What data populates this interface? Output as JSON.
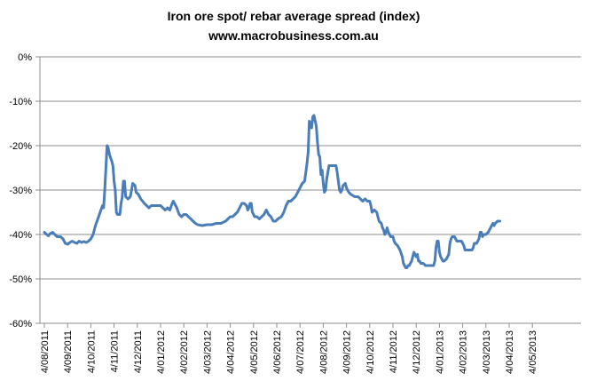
{
  "chart_data": {
    "type": "line",
    "title": "Iron ore spot/ rebar average spread (index)",
    "subtitle": "www.macrobusiness.com.au",
    "xlabel": "",
    "ylabel": "",
    "ylim": [
      -60,
      0
    ],
    "yticks": [
      0,
      -10,
      -20,
      -30,
      -40,
      -50,
      -60
    ],
    "ytick_labels": [
      "0%",
      "-10%",
      "-20%",
      "-30%",
      "-40%",
      "-50%",
      "-60%"
    ],
    "xticks": [
      "4/08/2011",
      "4/09/2011",
      "4/10/2011",
      "4/11/2011",
      "4/12/2011",
      "4/01/2012",
      "4/02/2012",
      "4/03/2012",
      "4/04/2012",
      "4/05/2012",
      "4/06/2012",
      "4/07/2012",
      "4/08/2012",
      "4/09/2012",
      "4/10/2012",
      "4/11/2012",
      "4/12/2012",
      "4/01/2013",
      "4/02/2013",
      "4/03/2013",
      "4/04/2013",
      "4/05/2013"
    ],
    "grid": true,
    "legend": "none",
    "line_color": "#4a7ebb",
    "series": [
      {
        "name": "Iron ore spot/ rebar average spread",
        "points": [
          [
            0,
            -39.5
          ],
          [
            0.1,
            -40.0
          ],
          [
            0.18,
            -40.3
          ],
          [
            0.25,
            -39.8
          ],
          [
            0.35,
            -39.5
          ],
          [
            0.45,
            -40.0
          ],
          [
            0.55,
            -40.5
          ],
          [
            0.7,
            -40.5
          ],
          [
            0.8,
            -41.0
          ],
          [
            0.9,
            -42.0
          ],
          [
            1.0,
            -42.2
          ],
          [
            1.1,
            -41.8
          ],
          [
            1.2,
            -41.5
          ],
          [
            1.3,
            -41.8
          ],
          [
            1.4,
            -42.0
          ],
          [
            1.5,
            -41.5
          ],
          [
            1.6,
            -41.8
          ],
          [
            1.7,
            -41.6
          ],
          [
            1.8,
            -41.8
          ],
          [
            1.9,
            -41.5
          ],
          [
            2.0,
            -41.0
          ],
          [
            2.1,
            -40.0
          ],
          [
            2.2,
            -38.0
          ],
          [
            2.3,
            -36.5
          ],
          [
            2.4,
            -35.0
          ],
          [
            2.5,
            -33.5
          ],
          [
            2.55,
            -34.0
          ],
          [
            2.6,
            -30.0
          ],
          [
            2.65,
            -25.0
          ],
          [
            2.7,
            -20.0
          ],
          [
            2.75,
            -20.5
          ],
          [
            2.8,
            -22.0
          ],
          [
            2.9,
            -23.5
          ],
          [
            2.95,
            -24.5
          ],
          [
            3.0,
            -28.0
          ],
          [
            3.05,
            -30.0
          ],
          [
            3.1,
            -35.0
          ],
          [
            3.15,
            -35.5
          ],
          [
            3.25,
            -35.5
          ],
          [
            3.3,
            -33.0
          ],
          [
            3.35,
            -31.5
          ],
          [
            3.4,
            -28.0
          ],
          [
            3.45,
            -28.0
          ],
          [
            3.5,
            -31.5
          ],
          [
            3.6,
            -32.0
          ],
          [
            3.7,
            -31.5
          ],
          [
            3.75,
            -30.0
          ],
          [
            3.8,
            -28.5
          ],
          [
            3.9,
            -29.0
          ],
          [
            3.95,
            -30.5
          ],
          [
            4.05,
            -31.0
          ],
          [
            4.15,
            -32.0
          ],
          [
            4.3,
            -33.0
          ],
          [
            4.4,
            -33.5
          ],
          [
            4.5,
            -34.0
          ],
          [
            4.6,
            -33.5
          ],
          [
            4.7,
            -33.5
          ],
          [
            4.8,
            -33.5
          ],
          [
            4.9,
            -33.5
          ],
          [
            5.0,
            -33.5
          ],
          [
            5.1,
            -34.0
          ],
          [
            5.2,
            -34.5
          ],
          [
            5.3,
            -34.0
          ],
          [
            5.4,
            -34.5
          ],
          [
            5.5,
            -33.0
          ],
          [
            5.55,
            -32.5
          ],
          [
            5.6,
            -33.0
          ],
          [
            5.7,
            -34.0
          ],
          [
            5.8,
            -35.5
          ],
          [
            5.9,
            -36.0
          ],
          [
            6.0,
            -35.5
          ],
          [
            6.1,
            -35.5
          ],
          [
            6.2,
            -36.0
          ],
          [
            6.3,
            -36.5
          ],
          [
            6.4,
            -37.0
          ],
          [
            6.5,
            -37.5
          ],
          [
            6.6,
            -37.8
          ],
          [
            6.8,
            -38.0
          ],
          [
            7.0,
            -37.8
          ],
          [
            7.2,
            -37.8
          ],
          [
            7.4,
            -37.5
          ],
          [
            7.6,
            -37.5
          ],
          [
            7.8,
            -37.0
          ],
          [
            7.9,
            -36.5
          ],
          [
            8.0,
            -36.0
          ],
          [
            8.1,
            -36.0
          ],
          [
            8.2,
            -35.5
          ],
          [
            8.3,
            -35.0
          ],
          [
            8.4,
            -34.0
          ],
          [
            8.45,
            -33.5
          ],
          [
            8.5,
            -33.0
          ],
          [
            8.6,
            -33.0
          ],
          [
            8.7,
            -33.5
          ],
          [
            8.75,
            -34.5
          ],
          [
            8.8,
            -34.0
          ],
          [
            8.85,
            -33.0
          ],
          [
            8.9,
            -33.0
          ],
          [
            8.95,
            -35.0
          ],
          [
            9.05,
            -36.0
          ],
          [
            9.15,
            -36.0
          ],
          [
            9.25,
            -36.5
          ],
          [
            9.35,
            -36.0
          ],
          [
            9.45,
            -35.5
          ],
          [
            9.55,
            -34.5
          ],
          [
            9.65,
            -35.5
          ],
          [
            9.75,
            -36.0
          ],
          [
            9.85,
            -37.0
          ],
          [
            9.95,
            -37.0
          ],
          [
            10.05,
            -36.5
          ],
          [
            10.2,
            -36.0
          ],
          [
            10.3,
            -35.0
          ],
          [
            10.4,
            -33.5
          ],
          [
            10.5,
            -32.5
          ],
          [
            10.6,
            -32.5
          ],
          [
            10.7,
            -32.0
          ],
          [
            10.8,
            -31.5
          ],
          [
            10.9,
            -30.5
          ],
          [
            11.0,
            -29.5
          ],
          [
            11.1,
            -28.5
          ],
          [
            11.2,
            -28.0
          ],
          [
            11.3,
            -24.0
          ],
          [
            11.35,
            -21.5
          ],
          [
            11.4,
            -14.5
          ],
          [
            11.45,
            -15.0
          ],
          [
            11.5,
            -16.0
          ],
          [
            11.55,
            -13.5
          ],
          [
            11.6,
            -13.2
          ],
          [
            11.7,
            -15.5
          ],
          [
            11.75,
            -19.0
          ],
          [
            11.8,
            -22.0
          ],
          [
            11.85,
            -22.5
          ],
          [
            11.9,
            -26.5
          ],
          [
            11.95,
            -25.5
          ],
          [
            12.0,
            -28.5
          ],
          [
            12.05,
            -30.5
          ],
          [
            12.1,
            -30.0
          ],
          [
            12.15,
            -27.5
          ],
          [
            12.2,
            -26.0
          ],
          [
            12.25,
            -24.5
          ],
          [
            12.35,
            -24.5
          ],
          [
            12.45,
            -24.5
          ],
          [
            12.55,
            -24.5
          ],
          [
            12.6,
            -26.0
          ],
          [
            12.65,
            -28.0
          ],
          [
            12.7,
            -30.0
          ],
          [
            12.75,
            -30.5
          ],
          [
            12.8,
            -30.0
          ],
          [
            12.85,
            -29.0
          ],
          [
            12.95,
            -28.5
          ],
          [
            13.0,
            -29.5
          ],
          [
            13.1,
            -30.5
          ],
          [
            13.2,
            -31.0
          ],
          [
            13.35,
            -31.5
          ],
          [
            13.5,
            -31.5
          ],
          [
            13.6,
            -32.0
          ],
          [
            13.7,
            -32.5
          ],
          [
            13.8,
            -32.0
          ],
          [
            13.9,
            -32.5
          ],
          [
            14.0,
            -32.5
          ],
          [
            14.05,
            -33.5
          ],
          [
            14.1,
            -35.0
          ],
          [
            14.2,
            -34.5
          ],
          [
            14.3,
            -35.0
          ],
          [
            14.4,
            -37.0
          ],
          [
            14.5,
            -37.5
          ],
          [
            14.55,
            -38.5
          ],
          [
            14.6,
            -39.0
          ],
          [
            14.65,
            -40.0
          ],
          [
            14.7,
            -39.5
          ],
          [
            14.75,
            -38.5
          ],
          [
            14.8,
            -39.5
          ],
          [
            14.85,
            -40.0
          ],
          [
            14.9,
            -40.5
          ],
          [
            15.0,
            -40.5
          ],
          [
            15.05,
            -41.5
          ],
          [
            15.1,
            -42.0
          ],
          [
            15.2,
            -42.5
          ],
          [
            15.3,
            -43.5
          ],
          [
            15.4,
            -45.0
          ],
          [
            15.45,
            -46.5
          ],
          [
            15.5,
            -47.0
          ],
          [
            15.55,
            -47.5
          ],
          [
            15.6,
            -47.5
          ],
          [
            15.65,
            -47.0
          ],
          [
            15.7,
            -47.0
          ],
          [
            15.75,
            -46.5
          ],
          [
            15.8,
            -46.0
          ],
          [
            15.85,
            -45.0
          ],
          [
            15.9,
            -44.0
          ],
          [
            15.95,
            -44.5
          ],
          [
            16.0,
            -45.0
          ],
          [
            16.05,
            -44.5
          ],
          [
            16.1,
            -46.0
          ],
          [
            16.15,
            -46.0
          ],
          [
            16.2,
            -46.5
          ],
          [
            16.3,
            -46.5
          ],
          [
            16.4,
            -47.0
          ],
          [
            16.5,
            -47.0
          ],
          [
            16.6,
            -47.0
          ],
          [
            16.7,
            -47.0
          ],
          [
            16.75,
            -47.0
          ],
          [
            16.8,
            -46.0
          ],
          [
            16.85,
            -43.0
          ],
          [
            16.9,
            -41.5
          ],
          [
            16.95,
            -41.5
          ],
          [
            17.0,
            -44.0
          ],
          [
            17.05,
            -45.0
          ],
          [
            17.1,
            -45.5
          ],
          [
            17.15,
            -46.0
          ],
          [
            17.2,
            -46.0
          ],
          [
            17.3,
            -45.5
          ],
          [
            17.35,
            -45.0
          ],
          [
            17.4,
            -44.5
          ],
          [
            17.45,
            -42.0
          ],
          [
            17.5,
            -41.0
          ],
          [
            17.55,
            -40.5
          ],
          [
            17.6,
            -40.5
          ],
          [
            17.65,
            -40.5
          ],
          [
            17.7,
            -41.0
          ],
          [
            17.75,
            -41.5
          ],
          [
            17.85,
            -41.5
          ],
          [
            17.95,
            -41.5
          ],
          [
            18.0,
            -42.0
          ],
          [
            18.05,
            -42.5
          ],
          [
            18.1,
            -43.5
          ],
          [
            18.2,
            -43.5
          ],
          [
            18.3,
            -43.5
          ],
          [
            18.4,
            -43.5
          ],
          [
            18.45,
            -43.0
          ],
          [
            18.5,
            -42.0
          ],
          [
            18.55,
            -42.0
          ],
          [
            18.6,
            -42.0
          ],
          [
            18.65,
            -41.5
          ],
          [
            18.7,
            -41.0
          ],
          [
            18.75,
            -39.5
          ],
          [
            18.8,
            -39.5
          ],
          [
            18.85,
            -40.5
          ],
          [
            18.9,
            -40.0
          ],
          [
            19.0,
            -40.0
          ],
          [
            19.1,
            -39.5
          ],
          [
            19.2,
            -38.5
          ],
          [
            19.3,
            -37.5
          ],
          [
            19.35,
            -38.0
          ],
          [
            19.4,
            -37.5
          ],
          [
            19.5,
            -37.0
          ],
          [
            19.6,
            -37.0
          ]
        ]
      }
    ]
  }
}
